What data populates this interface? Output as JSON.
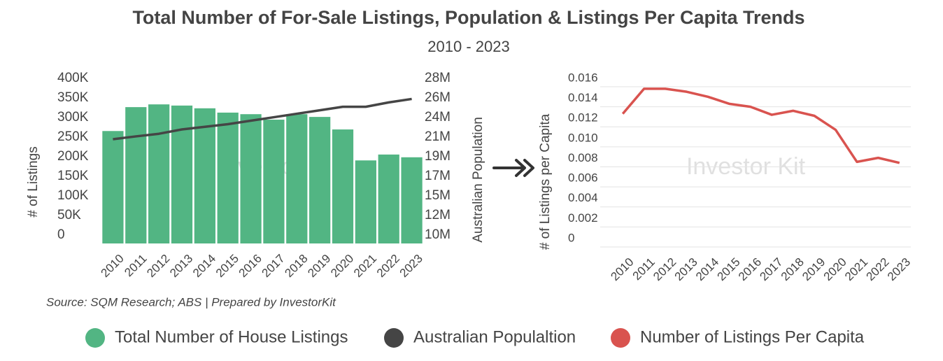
{
  "title": "Total Number of For-Sale Listings, Population & Listings Per Capita Trends",
  "subtitle": "2010 - 2023",
  "source": "Source: SQM Research; ABS | Prepared by InvestorKit",
  "chart_data": [
    {
      "type": "bar",
      "ylabel": "# of Listings",
      "y2label": "Australian Population",
      "watermark": "Investor",
      "categories": [
        "2010",
        "2011",
        "2012",
        "2013",
        "2014",
        "2015",
        "2016",
        "2017",
        "2018",
        "2019",
        "2020",
        "2021",
        "2022",
        "2023"
      ],
      "series": [
        {
          "name": "Total Number of House Listings",
          "type": "bar",
          "color": "#52b583",
          "values": [
            287000,
            348000,
            355000,
            352000,
            345000,
            334000,
            330000,
            316000,
            330000,
            323000,
            291000,
            212000,
            227000,
            220000
          ]
        },
        {
          "name": "Australian Populaltion",
          "type": "line",
          "axis": "y2",
          "color": "#454545",
          "values": [
            21970000,
            22300000,
            22600000,
            23100000,
            23400000,
            23700000,
            24100000,
            24500000,
            24900000,
            25300000,
            25700000,
            25700000,
            26200000,
            26600000
          ]
        }
      ],
      "ylim": [
        0,
        400000
      ],
      "yticks": [
        {
          "value": 0,
          "label": "0"
        },
        {
          "value": 50000,
          "label": "50K"
        },
        {
          "value": 100000,
          "label": "100K"
        },
        {
          "value": 150000,
          "label": "150K"
        },
        {
          "value": 200000,
          "label": "200K"
        },
        {
          "value": 250000,
          "label": "250K"
        },
        {
          "value": 300000,
          "label": "300K"
        },
        {
          "value": 350000,
          "label": "350K"
        },
        {
          "value": 400000,
          "label": "400K"
        }
      ],
      "y2lim": [
        10000000,
        28000000
      ],
      "y2ticks": [
        {
          "value": 10000000,
          "label": "10M"
        },
        {
          "value": 12250000,
          "label": "12M"
        },
        {
          "value": 14500000,
          "label": "15M"
        },
        {
          "value": 16750000,
          "label": "17M"
        },
        {
          "value": 19000000,
          "label": "19M"
        },
        {
          "value": 21250000,
          "label": "21M"
        },
        {
          "value": 23500000,
          "label": "24M"
        },
        {
          "value": 25750000,
          "label": "26M"
        },
        {
          "value": 28000000,
          "label": "28M"
        }
      ],
      "grid": false
    },
    {
      "type": "line",
      "ylabel": "# of Listings per Capita",
      "watermark": "Investor Kit",
      "categories": [
        "2010",
        "2011",
        "2012",
        "2013",
        "2014",
        "2015",
        "2016",
        "2017",
        "2018",
        "2019",
        "2020",
        "2021",
        "2022",
        "2023"
      ],
      "series": [
        {
          "name": "Number of Listings Per Capita",
          "type": "line",
          "color": "#d9534f",
          "values": [
            0.0133,
            0.0158,
            0.0158,
            0.0155,
            0.015,
            0.0143,
            0.014,
            0.0132,
            0.0136,
            0.0131,
            0.0117,
            0.0085,
            0.0089,
            0.0084
          ]
        }
      ],
      "ylim": [
        0,
        0.016
      ],
      "yticks": [
        0,
        {
          "value": 0.002,
          "label": "0.002"
        },
        {
          "value": 0.004,
          "label": "0.004"
        },
        {
          "value": 0.006,
          "label": "0.006"
        },
        {
          "value": 0.008,
          "label": "0.008"
        },
        {
          "value": 0.01,
          "label": "0.010"
        },
        {
          "value": 0.012,
          "label": "0.012"
        },
        {
          "value": 0.014,
          "label": "0.014"
        },
        {
          "value": 0.016,
          "label": "0.016"
        }
      ],
      "grid": true
    }
  ]
}
